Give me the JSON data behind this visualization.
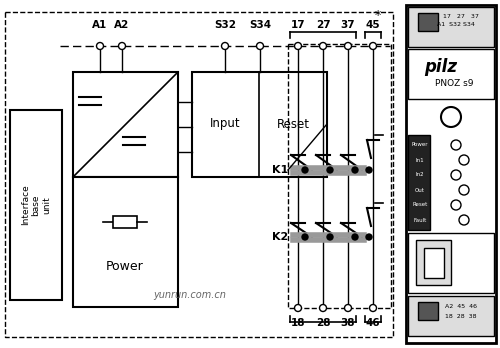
{
  "bg_color": "#ffffff",
  "line_color": "#000000",
  "gray_color": "#999999",
  "labels": {
    "A1": "A1",
    "A2": "A2",
    "S32": "S32",
    "S34": "S34",
    "17": "17",
    "27": "27",
    "37": "37",
    "45": "45",
    "18": "18",
    "28": "28",
    "38": "38",
    "46": "46",
    "K1": "K1",
    "K2": "K2",
    "Input": "Input",
    "Reset": "Reset",
    "Power": "Power",
    "interface": "Interface\nbase\nunit",
    "star": "*",
    "yunrun": "yunrun.com.cn",
    "pilz": "pilz",
    "pnoz": "PNOZ s9"
  }
}
